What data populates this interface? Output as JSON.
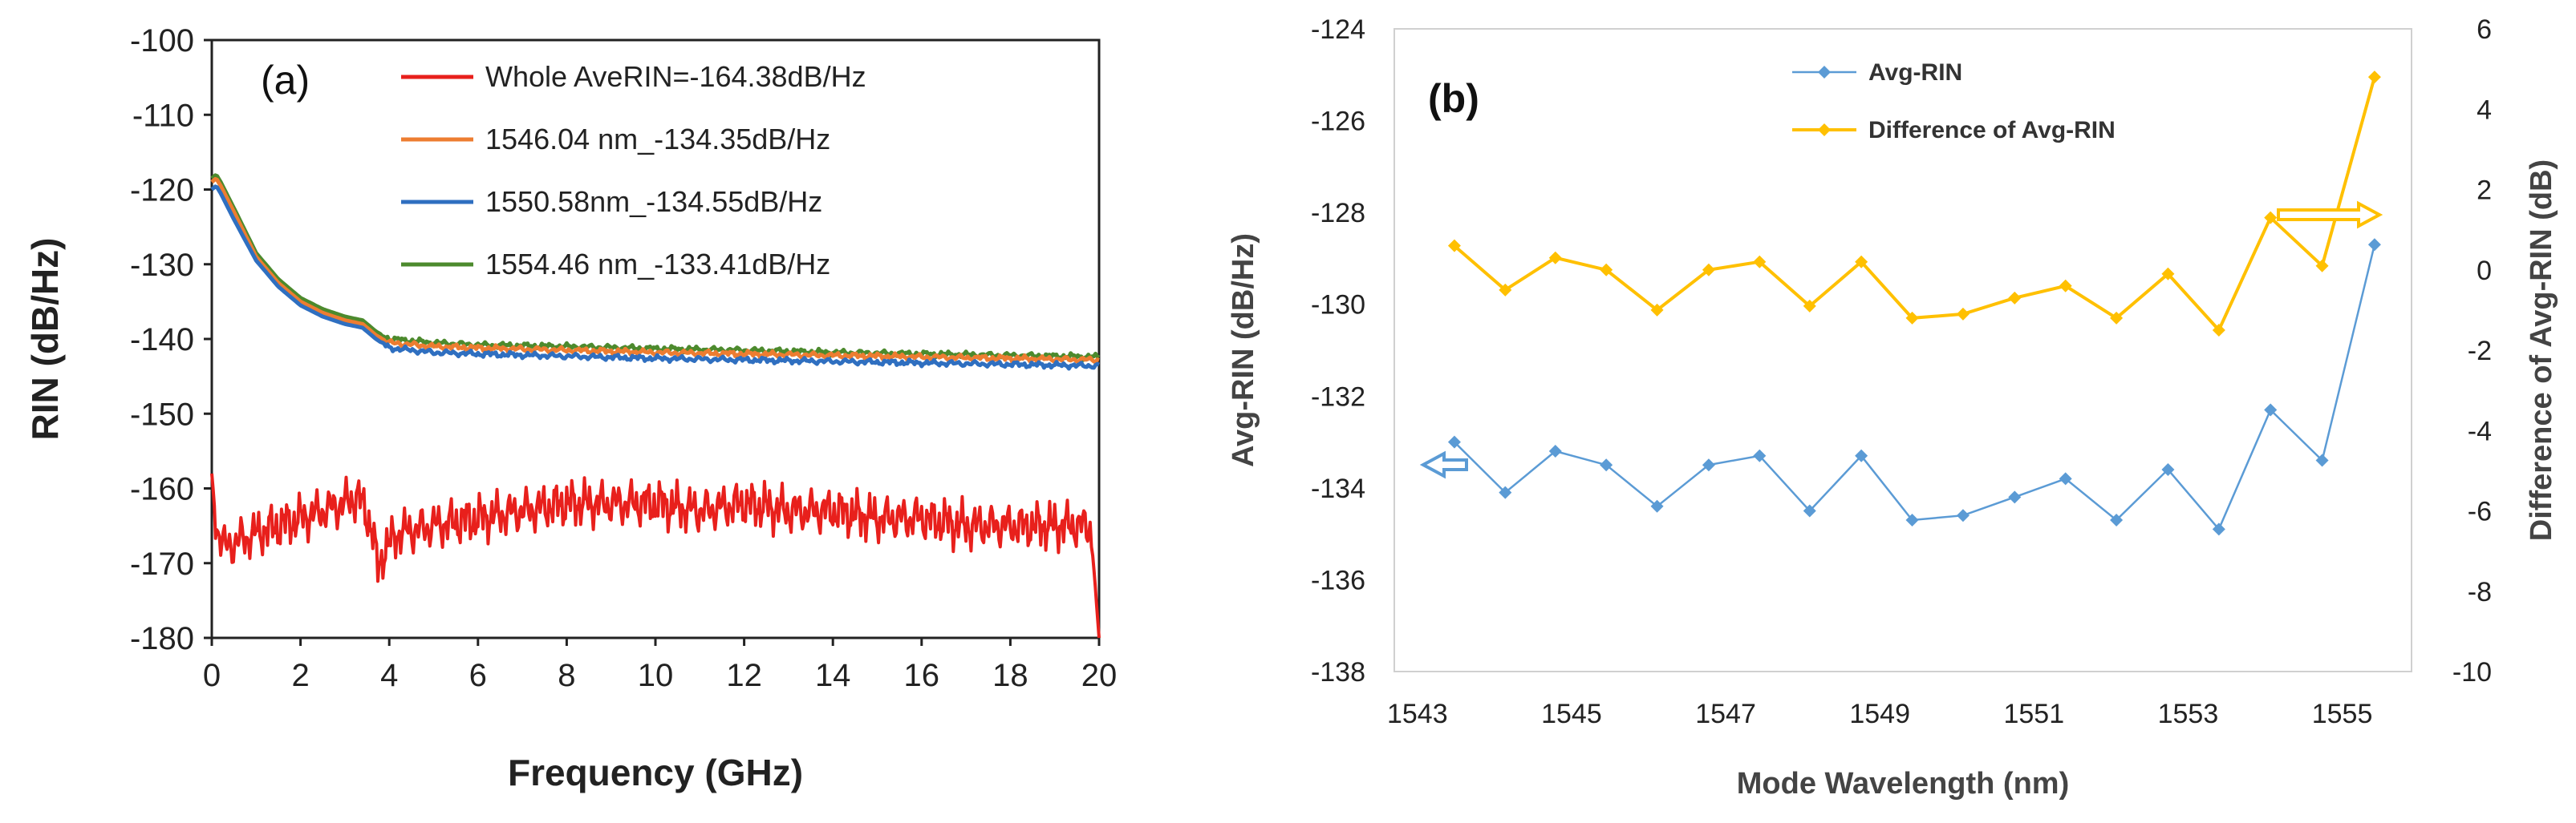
{
  "chart_data": [
    {
      "panel": "(a)",
      "type": "line",
      "xlabel": "Frequency (GHz)",
      "ylabel": "RIN (dB/Hz)",
      "xlim": [
        0,
        20
      ],
      "ylim": [
        -180,
        -100
      ],
      "xticks": [
        0,
        2,
        4,
        6,
        8,
        10,
        12,
        14,
        16,
        18,
        20
      ],
      "yticks": [
        -100,
        -110,
        -120,
        -130,
        -140,
        -150,
        -160,
        -170,
        -180
      ],
      "legend_position": "top-right",
      "series": [
        {
          "name": "Whole AveRIN=-164.38dB/Hz",
          "color": "#e8201c",
          "x": [
            0,
            0.1,
            0.3,
            0.6,
            1.0,
            1.5,
            2.0,
            2.5,
            3.0,
            3.3,
            3.6,
            3.75,
            3.9,
            4.2,
            5,
            6,
            7,
            8,
            9,
            10,
            11,
            12,
            13,
            14,
            15,
            16,
            17,
            18,
            19,
            19.8,
            19.9,
            20
          ],
          "values": [
            -158,
            -165,
            -168,
            -167,
            -166,
            -165,
            -164,
            -163,
            -162,
            -161,
            -165,
            -171,
            -168,
            -166,
            -165,
            -164,
            -163,
            -162,
            -162,
            -162,
            -163,
            -162,
            -163,
            -163,
            -164,
            -164,
            -165,
            -165,
            -165,
            -165,
            -172,
            -180
          ]
        },
        {
          "name": "1546.04 nm_-134.35dB/Hz",
          "color": "#ed7d31",
          "x": [
            0,
            0.1,
            0.2,
            0.5,
            1.0,
            1.5,
            2.0,
            2.5,
            3.0,
            3.4,
            3.7,
            4.0,
            5,
            6,
            8,
            10,
            12,
            14,
            16,
            18,
            20
          ],
          "values": [
            -119,
            -118.5,
            -119.5,
            -123,
            -129,
            -132.5,
            -135,
            -136.5,
            -137.5,
            -138,
            -139.5,
            -140.5,
            -141,
            -141.2,
            -141.5,
            -141.8,
            -142,
            -142.2,
            -142.4,
            -142.6,
            -142.8
          ]
        },
        {
          "name": "1550.58nm_-134.55dB/Hz",
          "color": "#2f6fc0",
          "x": [
            0,
            0.1,
            0.2,
            0.5,
            1.0,
            1.5,
            2.0,
            2.5,
            3.0,
            3.4,
            3.7,
            4.0,
            5,
            6,
            8,
            10,
            12,
            14,
            16,
            18,
            20
          ],
          "values": [
            -120,
            -119.5,
            -120.5,
            -124,
            -129.5,
            -133,
            -135.5,
            -137,
            -138,
            -138.5,
            -140,
            -141.2,
            -141.8,
            -142,
            -142.3,
            -142.6,
            -142.8,
            -143,
            -143.2,
            -143.4,
            -143.6
          ]
        },
        {
          "name": "1554.46 nm_-133.41dB/Hz",
          "color": "#4c8a2d",
          "x": [
            0,
            0.1,
            0.2,
            0.5,
            1.0,
            1.5,
            2.0,
            2.5,
            3.0,
            3.4,
            3.7,
            4.0,
            5,
            6,
            8,
            10,
            12,
            14,
            16,
            18,
            20
          ],
          "values": [
            -118.5,
            -118,
            -119,
            -122.5,
            -128.5,
            -132,
            -134.5,
            -136,
            -137,
            -137.5,
            -139,
            -140,
            -140.5,
            -140.8,
            -141,
            -141.3,
            -141.5,
            -141.8,
            -142,
            -142.2,
            -142.4
          ]
        }
      ]
    },
    {
      "panel": "(b)",
      "type": "line",
      "xlabel": "Mode Wavelength (nm)",
      "ylabel": "Avg-RIN (dB/Hz)",
      "y2label": "Difference of Avg-RIN (dB)",
      "xlim": [
        1542.7,
        1555.9
      ],
      "ylim": [
        -138,
        -124
      ],
      "y2lim": [
        -10,
        6
      ],
      "xticks": [
        1543,
        1545,
        1547,
        1549,
        1551,
        1553,
        1555
      ],
      "yticks": [
        -124,
        -126,
        -128,
        -130,
        -132,
        -134,
        -136,
        -138
      ],
      "y2ticks": [
        6,
        4,
        2,
        0,
        -2,
        -4,
        -6,
        -8,
        -10
      ],
      "legend_position": "top-center",
      "x": [
        1543.48,
        1544.14,
        1544.79,
        1545.45,
        1546.11,
        1546.78,
        1547.44,
        1548.09,
        1548.76,
        1549.42,
        1550.08,
        1550.75,
        1551.41,
        1552.07,
        1552.74,
        1553.4,
        1554.07,
        1554.74,
        1555.42
      ],
      "series": [
        {
          "name": "Avg-RIN",
          "axis": "left",
          "color": "#5b9bd5",
          "values": [
            -133.0,
            -134.1,
            -133.2,
            -133.5,
            -134.4,
            -133.5,
            -133.3,
            -134.5,
            -133.3,
            -134.7,
            -134.6,
            -134.2,
            -133.8,
            -134.7,
            -133.6,
            -134.9,
            -132.3,
            -133.4,
            -128.7
          ]
        },
        {
          "name": "Difference of Avg-RIN",
          "axis": "right",
          "color": "#ffc000",
          "values": [
            0.6,
            -0.5,
            0.3,
            0.0,
            -1.0,
            0.0,
            0.2,
            -0.9,
            0.2,
            -1.2,
            -1.1,
            -0.7,
            -0.4,
            -1.2,
            -0.1,
            -1.5,
            1.3,
            0.1,
            4.8
          ]
        }
      ],
      "annotations": [
        "left-arrow (blue) pointing to left axis",
        "right-arrow (orange) pointing to right axis"
      ]
    }
  ]
}
